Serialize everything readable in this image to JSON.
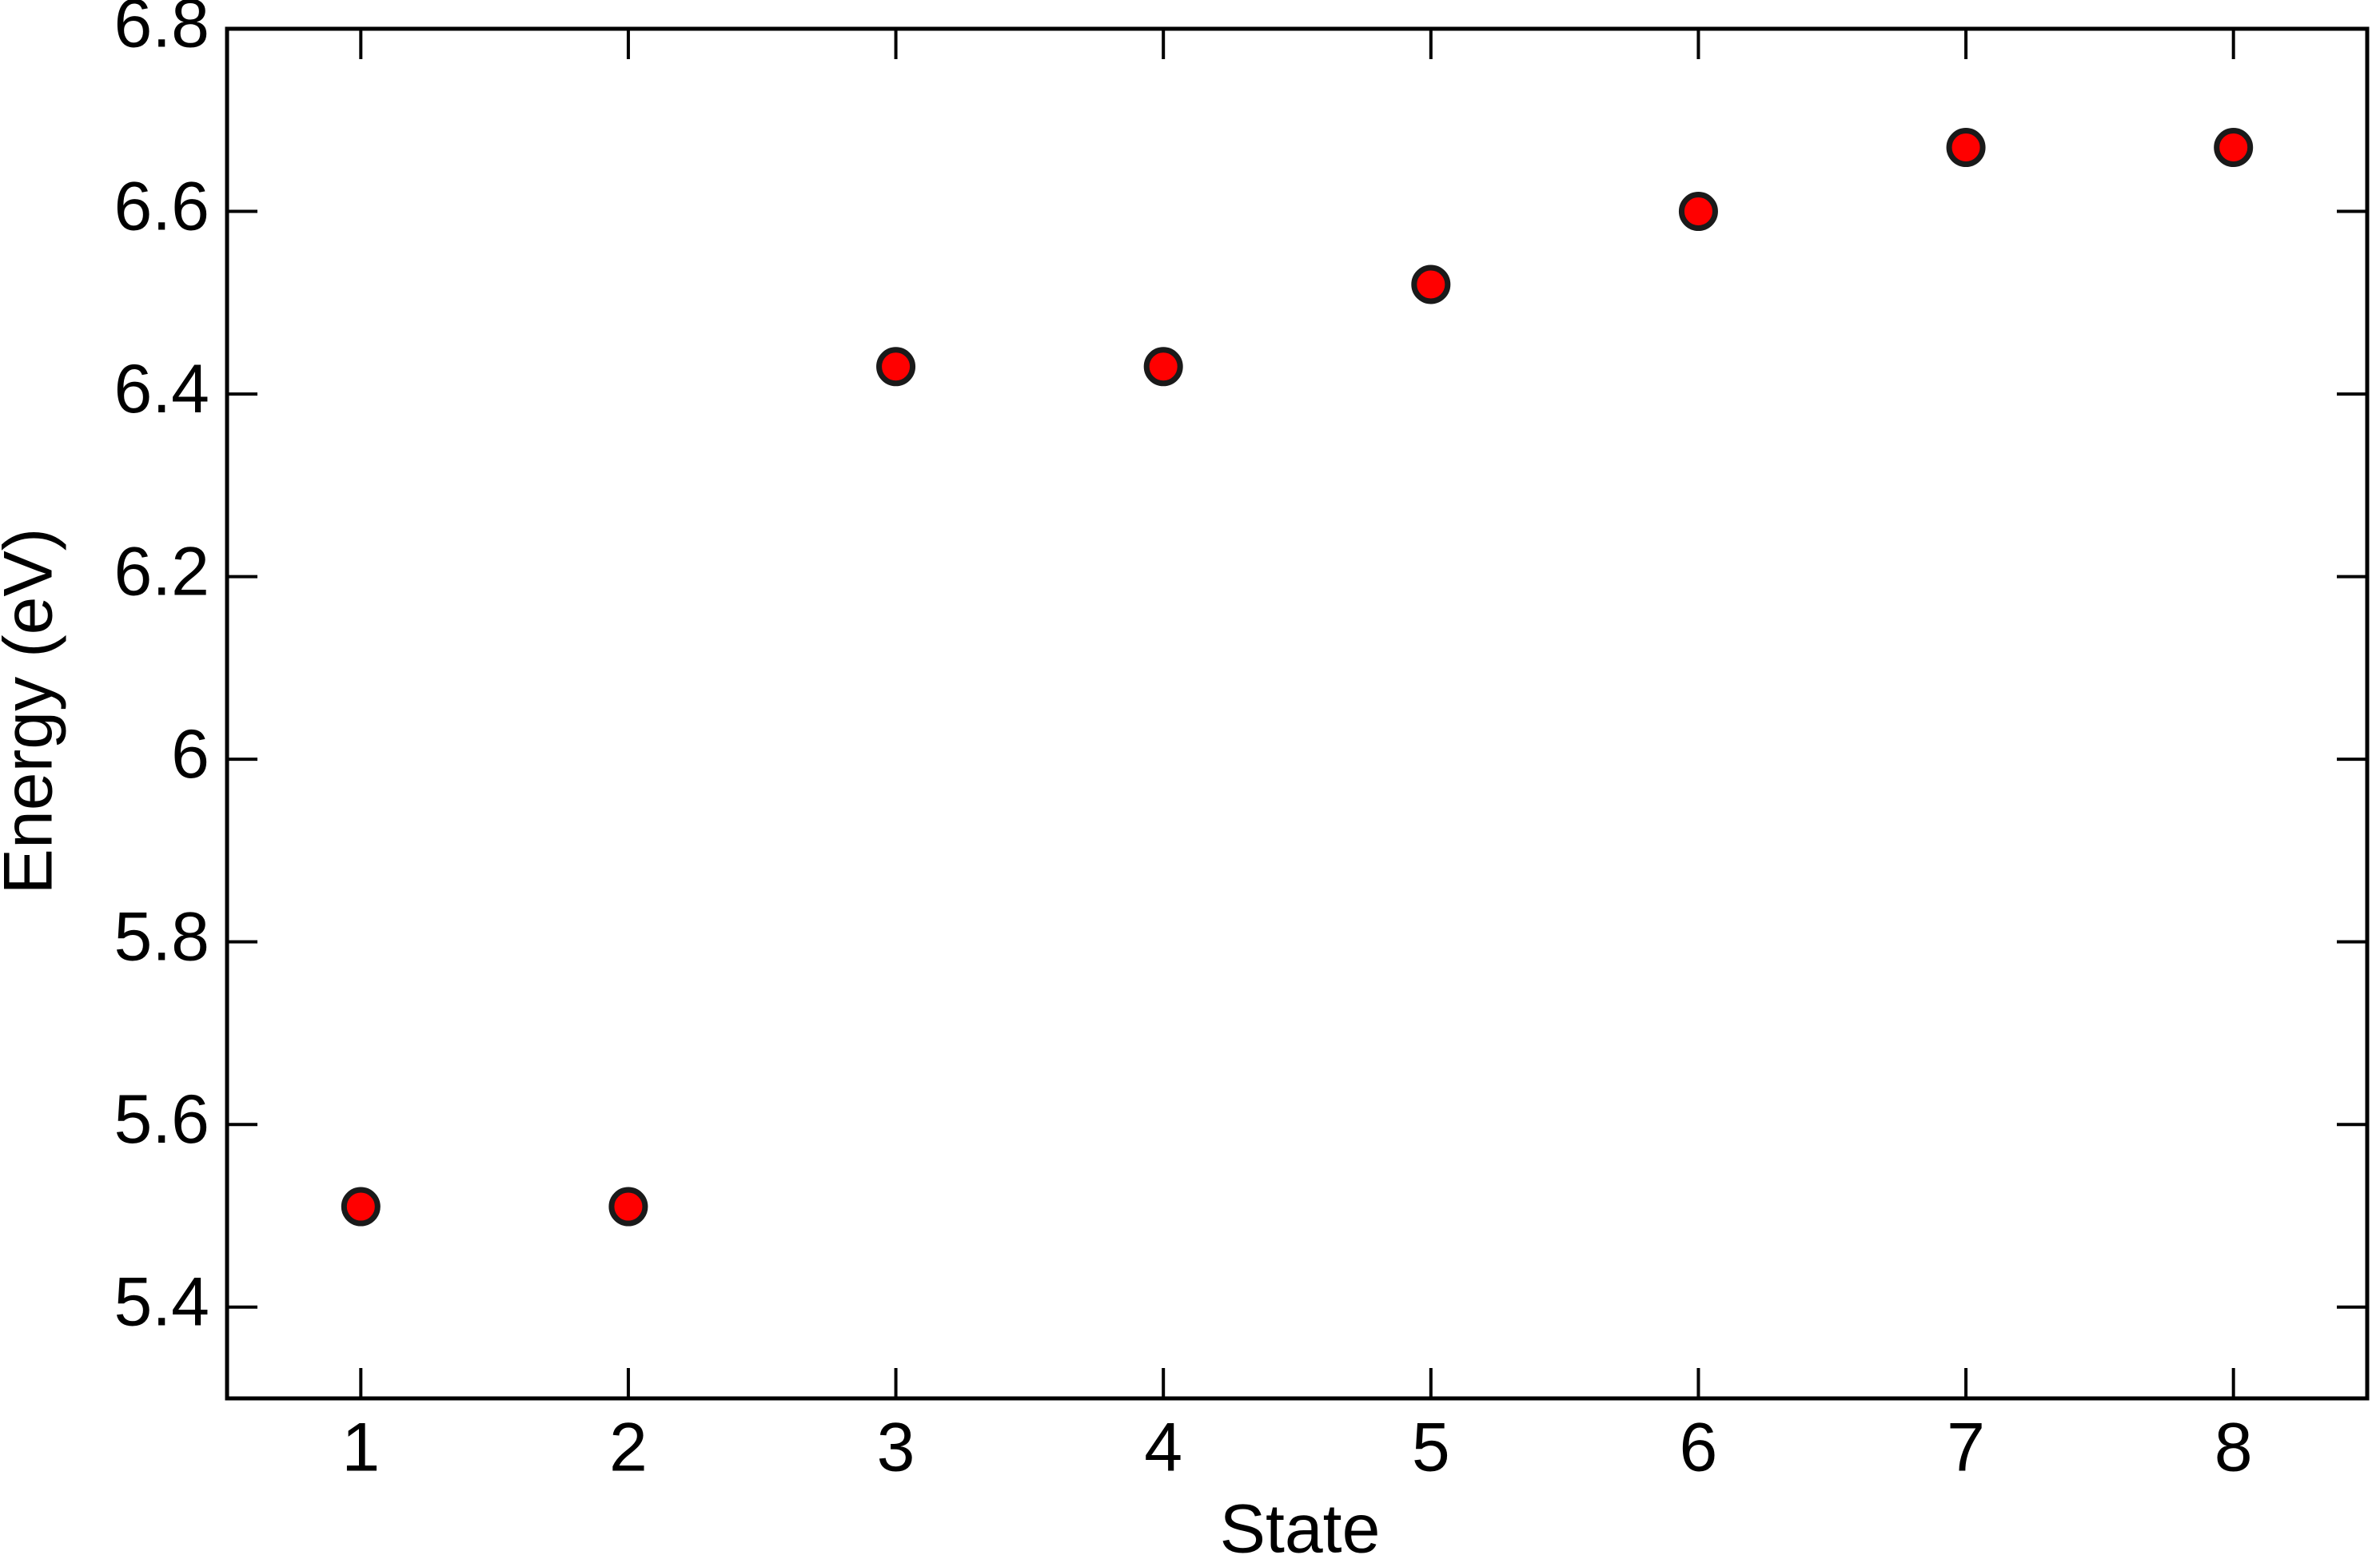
{
  "chart_data": {
    "type": "scatter",
    "x_label": "State",
    "y_label": "Energy (eV)",
    "x": [
      1,
      2,
      3,
      4,
      5,
      6,
      7,
      8
    ],
    "values": [
      5.51,
      5.51,
      6.43,
      6.43,
      6.52,
      6.6,
      6.67,
      6.67
    ],
    "color": "#ff0000",
    "xlim": [
      0.5,
      8.5
    ],
    "xticks": [
      1,
      2,
      3,
      4,
      5,
      6,
      7,
      8
    ],
    "ylim": [
      5.3,
      6.8
    ],
    "yticks": [
      5.4,
      5.6,
      5.8,
      6,
      6.2,
      6.4,
      6.6,
      6.8
    ],
    "grid": false
  }
}
